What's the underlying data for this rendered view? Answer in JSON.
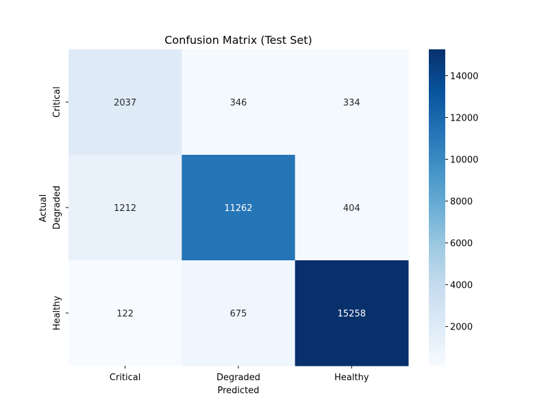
{
  "chart_data": {
    "type": "heatmap",
    "title": "Confusion Matrix (Test Set)",
    "xlabel": "Predicted",
    "ylabel": "Actual",
    "x_categories": [
      "Critical",
      "Degraded",
      "Healthy"
    ],
    "y_categories": [
      "Critical",
      "Degraded",
      "Healthy"
    ],
    "values": [
      [
        2037,
        346,
        334
      ],
      [
        1212,
        11262,
        404
      ],
      [
        122,
        675,
        15258
      ]
    ],
    "colormap": "Blues",
    "color_range": [
      122,
      15258
    ],
    "colorbar_ticks": [
      2000,
      4000,
      6000,
      8000,
      10000,
      12000,
      14000
    ],
    "grid": false
  }
}
